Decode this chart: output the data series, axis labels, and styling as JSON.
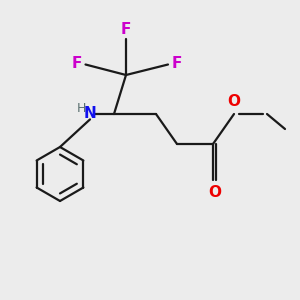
{
  "background_color": "#ececec",
  "bond_color": "#1a1a1a",
  "N_color": "#1010ee",
  "H_color": "#5a7070",
  "O_color": "#ee0000",
  "F_color": "#cc00cc",
  "figsize": [
    3.0,
    3.0
  ],
  "dpi": 100,
  "xlim": [
    0,
    10
  ],
  "ylim": [
    0,
    10
  ],
  "lw": 1.6,
  "fs": 11,
  "fs_small": 9
}
